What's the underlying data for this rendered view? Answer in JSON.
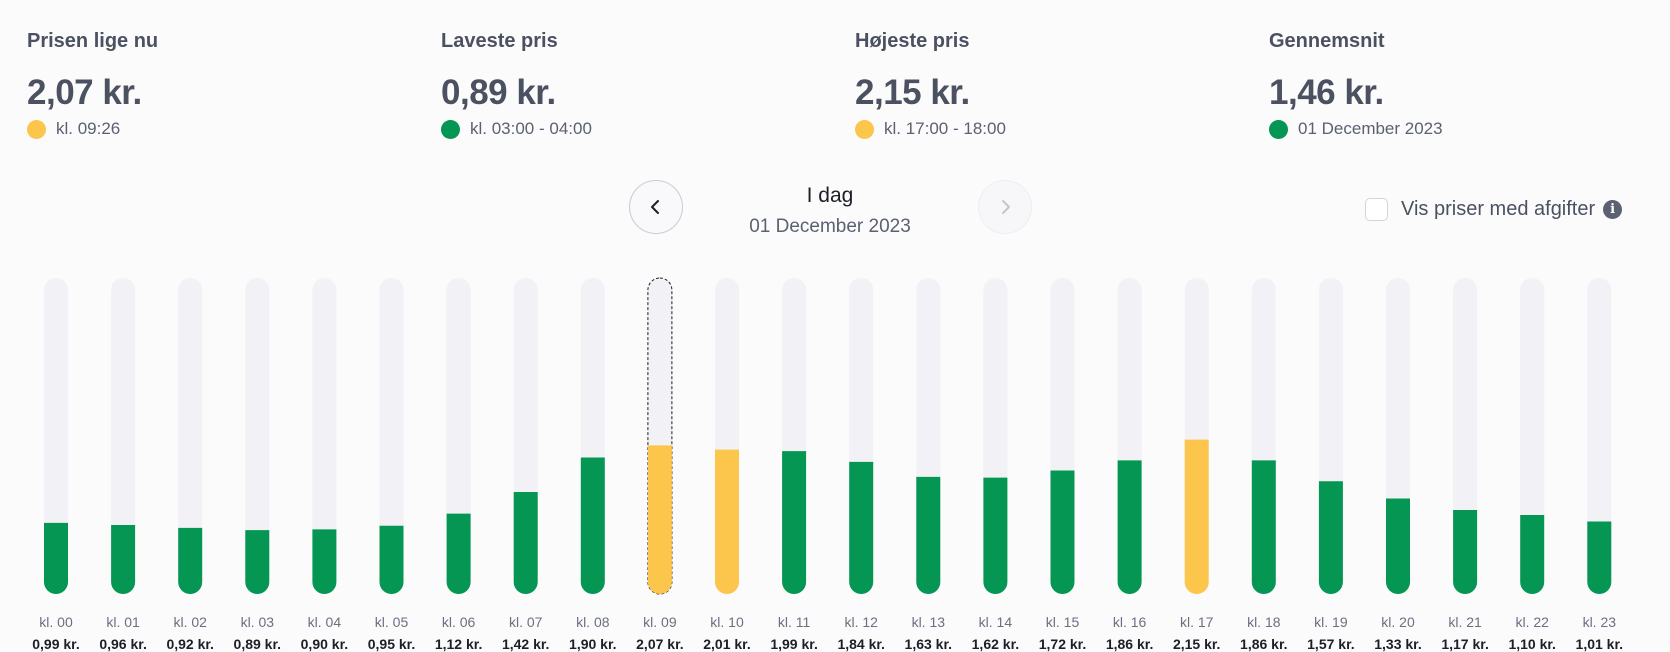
{
  "stats": [
    {
      "label": "Prisen lige nu",
      "value": "2,07 kr.",
      "sub": "kl. 09:26",
      "dot_color": "#fcc64d"
    },
    {
      "label": "Laveste pris",
      "value": "0,89 kr.",
      "sub": "kl. 03:00 - 04:00",
      "dot_color": "#049652"
    },
    {
      "label": "Højeste pris",
      "value": "2,15 kr.",
      "sub": "kl. 17:00 - 18:00",
      "dot_color": "#fcc64d"
    },
    {
      "label": "Gennemsnit",
      "value": "1,46 kr.",
      "sub": "01 December 2023",
      "dot_color": "#049652"
    }
  ],
  "nav": {
    "title": "I dag",
    "date": "01 December 2023"
  },
  "vat_toggle": {
    "label": "Vis priser med afgifter",
    "checked": false
  },
  "colors": {
    "green": "#049652",
    "yellow": "#fcc64d",
    "track": "#f1f1f6"
  },
  "chart_data": {
    "type": "bar",
    "ylim": [
      0,
      4.4
    ],
    "categories": [
      "kl. 00",
      "kl. 01",
      "kl. 02",
      "kl. 03",
      "kl. 04",
      "kl. 05",
      "kl. 06",
      "kl. 07",
      "kl. 08",
      "kl. 09",
      "kl. 10",
      "kl. 11",
      "kl. 12",
      "kl. 13",
      "kl. 14",
      "kl. 15",
      "kl. 16",
      "kl. 17",
      "kl. 18",
      "kl. 19",
      "kl. 20",
      "kl. 21",
      "kl. 22",
      "kl. 23"
    ],
    "values": [
      0.99,
      0.96,
      0.92,
      0.89,
      0.9,
      0.95,
      1.12,
      1.42,
      1.9,
      2.07,
      2.01,
      1.99,
      1.84,
      1.63,
      1.62,
      1.72,
      1.86,
      2.15,
      1.86,
      1.57,
      1.33,
      1.17,
      1.1,
      1.01
    ],
    "value_labels": [
      "0,99 kr.",
      "0,96 kr.",
      "0,92 kr.",
      "0,89 kr.",
      "0,90 kr.",
      "0,95 kr.",
      "1,12 kr.",
      "1,42 kr.",
      "1,90 kr.",
      "2,07 kr.",
      "2,01 kr.",
      "1,99 kr.",
      "1,84 kr.",
      "1,63 kr.",
      "1,62 kr.",
      "1,72 kr.",
      "1,86 kr.",
      "2,15 kr.",
      "1,86 kr.",
      "1,57 kr.",
      "1,33 kr.",
      "1,17 kr.",
      "1,10 kr.",
      "1,01 kr."
    ],
    "highlight_colors": [
      "green",
      "green",
      "green",
      "green",
      "green",
      "green",
      "green",
      "green",
      "green",
      "yellow",
      "yellow",
      "green",
      "green",
      "green",
      "green",
      "green",
      "green",
      "yellow",
      "green",
      "green",
      "green",
      "green",
      "green",
      "green"
    ],
    "current_hour_index": 9
  }
}
